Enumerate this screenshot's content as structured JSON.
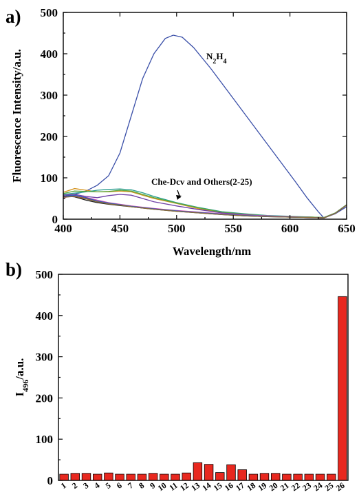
{
  "panels": {
    "a_label": "a)",
    "b_label": "b)"
  },
  "chart_data": [
    {
      "type": "line",
      "panel": "a)",
      "xlabel": "Wavelength/nm",
      "ylabel": "Fluorescence Intensity/a.u.",
      "xlim": [
        400,
        650
      ],
      "ylim": [
        0,
        500
      ],
      "xticks": [
        400,
        450,
        500,
        550,
        600,
        650
      ],
      "yticks": [
        0,
        100,
        200,
        300,
        400,
        500
      ],
      "grid": false,
      "annotations": {
        "n2h4": "N2H4",
        "others": "Che-Dcv and Others(2-25)"
      },
      "series": [
        {
          "color": "#3a4fa8",
          "points": [
            [
              400,
              55
            ],
            [
              410,
              60
            ],
            [
              420,
              68
            ],
            [
              430,
              82
            ],
            [
              440,
              105
            ],
            [
              450,
              160
            ],
            [
              460,
              250
            ],
            [
              470,
              340
            ],
            [
              480,
              400
            ],
            [
              490,
              437
            ],
            [
              497,
              445
            ],
            [
              505,
              440
            ],
            [
              515,
              415
            ],
            [
              530,
              365
            ],
            [
              545,
              310
            ],
            [
              560,
              255
            ],
            [
              575,
              200
            ],
            [
              590,
              145
            ],
            [
              605,
              90
            ],
            [
              615,
              52
            ],
            [
              625,
              18
            ],
            [
              630,
              3
            ],
            [
              640,
              13
            ],
            [
              650,
              30
            ]
          ]
        },
        {
          "color": "#d4921c",
          "points": [
            [
              400,
              65
            ],
            [
              410,
              74
            ],
            [
              420,
              70
            ],
            [
              430,
              66
            ],
            [
              440,
              66
            ],
            [
              450,
              68
            ],
            [
              460,
              66
            ],
            [
              470,
              58
            ],
            [
              480,
              50
            ],
            [
              500,
              38
            ],
            [
              520,
              25
            ],
            [
              540,
              16
            ],
            [
              560,
              11
            ],
            [
              580,
              8
            ],
            [
              600,
              6
            ],
            [
              620,
              5
            ],
            [
              630,
              4
            ],
            [
              640,
              15
            ],
            [
              650,
              35
            ]
          ]
        },
        {
          "color": "#2a9d8f",
          "points": [
            [
              400,
              60
            ],
            [
              410,
              63
            ],
            [
              420,
              66
            ],
            [
              430,
              70
            ],
            [
              440,
              72
            ],
            [
              450,
              73
            ],
            [
              460,
              71
            ],
            [
              470,
              64
            ],
            [
              480,
              55
            ],
            [
              500,
              40
            ],
            [
              520,
              28
            ],
            [
              540,
              18
            ],
            [
              560,
              13
            ],
            [
              580,
              9
            ],
            [
              600,
              7
            ],
            [
              620,
              5
            ],
            [
              630,
              4
            ],
            [
              640,
              15
            ],
            [
              650,
              35
            ]
          ]
        },
        {
          "color": "#58a83f",
          "points": [
            [
              400,
              62
            ],
            [
              410,
              68
            ],
            [
              420,
              67
            ],
            [
              430,
              66
            ],
            [
              440,
              67
            ],
            [
              450,
              70
            ],
            [
              460,
              68
            ],
            [
              470,
              60
            ],
            [
              480,
              52
            ],
            [
              500,
              39
            ],
            [
              520,
              27
            ],
            [
              540,
              17
            ],
            [
              560,
              12
            ],
            [
              580,
              8
            ],
            [
              600,
              6
            ],
            [
              620,
              5
            ],
            [
              630,
              4
            ],
            [
              640,
              15
            ],
            [
              650,
              35
            ]
          ]
        },
        {
          "color": "#6f3fa6",
          "points": [
            [
              400,
              58
            ],
            [
              410,
              60
            ],
            [
              420,
              55
            ],
            [
              430,
              52
            ],
            [
              440,
              57
            ],
            [
              450,
              60
            ],
            [
              460,
              58
            ],
            [
              470,
              50
            ],
            [
              480,
              42
            ],
            [
              500,
              32
            ],
            [
              520,
              23
            ],
            [
              540,
              15
            ],
            [
              560,
              11
            ],
            [
              580,
              7
            ],
            [
              600,
              5
            ],
            [
              620,
              4
            ],
            [
              630,
              3
            ],
            [
              640,
              14
            ],
            [
              650,
              34
            ]
          ]
        },
        {
          "color": "#c0392b",
          "points": [
            [
              400,
              54
            ],
            [
              410,
              56
            ],
            [
              420,
              50
            ],
            [
              430,
              43
            ],
            [
              440,
              38
            ],
            [
              450,
              35
            ],
            [
              460,
              31
            ],
            [
              470,
              28
            ],
            [
              480,
              25
            ],
            [
              500,
              20
            ],
            [
              520,
              16
            ],
            [
              540,
              12
            ],
            [
              560,
              9
            ],
            [
              580,
              7
            ],
            [
              600,
              5
            ],
            [
              620,
              4
            ],
            [
              630,
              3
            ],
            [
              640,
              14
            ],
            [
              650,
              34
            ]
          ]
        },
        {
          "color": "#1f1f1f",
          "points": [
            [
              400,
              56
            ],
            [
              410,
              54
            ],
            [
              420,
              46
            ],
            [
              430,
              40
            ],
            [
              440,
              36
            ],
            [
              450,
              33
            ],
            [
              460,
              30
            ],
            [
              470,
              27
            ],
            [
              480,
              24
            ],
            [
              500,
              19
            ],
            [
              520,
              15
            ],
            [
              540,
              11
            ],
            [
              560,
              8
            ],
            [
              580,
              6
            ],
            [
              600,
              5
            ],
            [
              620,
              4
            ],
            [
              630,
              3
            ],
            [
              640,
              14
            ],
            [
              650,
              34
            ]
          ]
        },
        {
          "color": "#d04fb0",
          "points": [
            [
              400,
              52
            ],
            [
              410,
              57
            ],
            [
              420,
              53
            ],
            [
              430,
              46
            ],
            [
              440,
              40
            ],
            [
              450,
              36
            ],
            [
              460,
              32
            ],
            [
              470,
              29
            ],
            [
              480,
              26
            ],
            [
              500,
              21
            ],
            [
              520,
              17
            ],
            [
              540,
              13
            ],
            [
              560,
              10
            ],
            [
              580,
              8
            ],
            [
              600,
              6
            ],
            [
              620,
              4
            ],
            [
              630,
              3
            ],
            [
              640,
              14
            ],
            [
              650,
              34
            ]
          ]
        },
        {
          "color": "#2e5fb8",
          "points": [
            [
              400,
              54
            ],
            [
              410,
              58
            ],
            [
              420,
              52
            ],
            [
              430,
              44
            ],
            [
              440,
              39
            ],
            [
              450,
              35
            ],
            [
              460,
              31
            ],
            [
              470,
              28
            ],
            [
              480,
              25
            ],
            [
              500,
              20
            ],
            [
              520,
              16
            ],
            [
              540,
              12
            ],
            [
              560,
              9
            ],
            [
              580,
              7
            ],
            [
              600,
              5
            ],
            [
              620,
              4
            ],
            [
              630,
              3
            ],
            [
              640,
              14
            ],
            [
              650,
              34
            ]
          ]
        },
        {
          "color": "#8a6d3b",
          "points": [
            [
              400,
              53
            ],
            [
              410,
              55
            ],
            [
              420,
              49
            ],
            [
              430,
              42
            ],
            [
              440,
              37
            ],
            [
              450,
              34
            ],
            [
              460,
              30
            ],
            [
              470,
              27
            ],
            [
              480,
              24
            ],
            [
              500,
              19
            ],
            [
              520,
              15
            ],
            [
              540,
              11
            ],
            [
              560,
              8
            ],
            [
              580,
              6
            ],
            [
              600,
              5
            ],
            [
              620,
              4
            ],
            [
              630,
              3
            ],
            [
              640,
              14
            ],
            [
              650,
              34
            ]
          ]
        }
      ]
    },
    {
      "type": "bar",
      "panel": "b)",
      "ylabel": "I496/a.u.",
      "ylabel_main": "I",
      "ylabel_sub": "496",
      "ylabel_tail": "/a.u.",
      "ylim": [
        0,
        500
      ],
      "yticks": [
        0,
        100,
        200,
        300,
        400,
        500
      ],
      "grid": false,
      "bar_color": "#e8281f",
      "categories": [
        "1",
        "2",
        "3",
        "4",
        "5",
        "6",
        "7",
        "8",
        "9",
        "10",
        "11",
        "12",
        "13",
        "14",
        "15",
        "16",
        "17",
        "18",
        "19",
        "20",
        "21",
        "22",
        "23",
        "24",
        "25",
        "26"
      ],
      "values": [
        15,
        17,
        17,
        15,
        18,
        15,
        15,
        15,
        17,
        15,
        15,
        18,
        43,
        39,
        19,
        38,
        26,
        15,
        17,
        17,
        15,
        15,
        15,
        15,
        15,
        446
      ]
    }
  ]
}
